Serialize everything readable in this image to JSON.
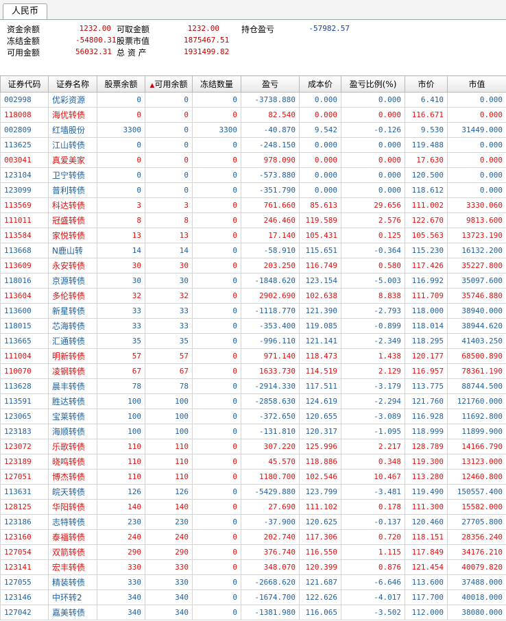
{
  "tab": "人民币",
  "summary": [
    [
      {
        "label": "资金余额",
        "value": "1232.00"
      },
      {
        "label": "可取金额",
        "value": "1232.00"
      },
      {
        "label": "持仓盈亏",
        "value": "-57982.57"
      }
    ],
    [
      {
        "label": "冻结金额",
        "value": "-54800.31"
      },
      {
        "label": "股票市值",
        "value": "1875467.51"
      }
    ],
    [
      {
        "label": "可用金额",
        "value": "56032.31"
      },
      {
        "label": "总 资 产",
        "value": "1931499.82"
      }
    ]
  ],
  "table": {
    "headers": [
      "证券代码",
      "证券名称",
      "股票余额",
      "可用余额",
      "冻结数量",
      "盈亏",
      "成本价",
      "盈亏比例(%)",
      "市价",
      "市值"
    ],
    "rows": [
      [
        "002998",
        "优彩资源",
        "0",
        "0",
        "0",
        "-3738.880",
        "0.000",
        "0.000",
        "6.410",
        "0.000"
      ],
      [
        "118008",
        "海优转债",
        "0",
        "0",
        "0",
        "82.540",
        "0.000",
        "0.000",
        "116.671",
        "0.000"
      ],
      [
        "002809",
        "红墙股份",
        "3300",
        "0",
        "3300",
        "-40.870",
        "9.542",
        "-0.126",
        "9.530",
        "31449.000"
      ],
      [
        "113625",
        "江山转债",
        "0",
        "0",
        "0",
        "-248.150",
        "0.000",
        "0.000",
        "119.488",
        "0.000"
      ],
      [
        "003041",
        "真爱美家",
        "0",
        "0",
        "0",
        "978.090",
        "0.000",
        "0.000",
        "17.630",
        "0.000"
      ],
      [
        "123104",
        "卫宁转债",
        "0",
        "0",
        "0",
        "-573.880",
        "0.000",
        "0.000",
        "120.500",
        "0.000"
      ],
      [
        "123099",
        "普利转债",
        "0",
        "0",
        "0",
        "-351.790",
        "0.000",
        "0.000",
        "118.612",
        "0.000"
      ],
      [
        "113569",
        "科达转债",
        "3",
        "3",
        "0",
        "761.660",
        "85.613",
        "29.656",
        "111.002",
        "3330.060"
      ],
      [
        "111011",
        "冠盛转债",
        "8",
        "8",
        "0",
        "246.460",
        "119.589",
        "2.576",
        "122.670",
        "9813.600"
      ],
      [
        "113584",
        "家悦转债",
        "13",
        "13",
        "0",
        "17.140",
        "105.431",
        "0.125",
        "105.563",
        "13723.190"
      ],
      [
        "113668",
        "N鹿山转",
        "14",
        "14",
        "0",
        "-58.910",
        "115.651",
        "-0.364",
        "115.230",
        "16132.200"
      ],
      [
        "113609",
        "永安转债",
        "30",
        "30",
        "0",
        "203.250",
        "116.749",
        "0.580",
        "117.426",
        "35227.800"
      ],
      [
        "118016",
        "京源转债",
        "30",
        "30",
        "0",
        "-1848.620",
        "123.154",
        "-5.003",
        "116.992",
        "35097.600"
      ],
      [
        "113604",
        "多伦转债",
        "32",
        "32",
        "0",
        "2902.690",
        "102.638",
        "8.838",
        "111.709",
        "35746.880"
      ],
      [
        "113600",
        "新星转债",
        "33",
        "33",
        "0",
        "-1118.770",
        "121.390",
        "-2.793",
        "118.000",
        "38940.000"
      ],
      [
        "118015",
        "芯海转债",
        "33",
        "33",
        "0",
        "-353.400",
        "119.085",
        "-0.899",
        "118.014",
        "38944.620"
      ],
      [
        "113665",
        "汇通转债",
        "35",
        "35",
        "0",
        "-996.110",
        "121.141",
        "-2.349",
        "118.295",
        "41403.250"
      ],
      [
        "111004",
        "明新转债",
        "57",
        "57",
        "0",
        "971.140",
        "118.473",
        "1.438",
        "120.177",
        "68500.890"
      ],
      [
        "110070",
        "凌钢转债",
        "67",
        "67",
        "0",
        "1633.730",
        "114.519",
        "2.129",
        "116.957",
        "78361.190"
      ],
      [
        "113628",
        "晨丰转债",
        "78",
        "78",
        "0",
        "-2914.330",
        "117.511",
        "-3.179",
        "113.775",
        "88744.500"
      ],
      [
        "113591",
        "胜达转债",
        "100",
        "100",
        "0",
        "-2858.630",
        "124.619",
        "-2.294",
        "121.760",
        "121760.000"
      ],
      [
        "123065",
        "宝莱转债",
        "100",
        "100",
        "0",
        "-372.650",
        "120.655",
        "-3.089",
        "116.928",
        "11692.800"
      ],
      [
        "123183",
        "海顺转债",
        "100",
        "100",
        "0",
        "-131.810",
        "120.317",
        "-1.095",
        "118.999",
        "11899.900"
      ],
      [
        "123072",
        "乐歌转债",
        "110",
        "110",
        "0",
        "307.220",
        "125.996",
        "2.217",
        "128.789",
        "14166.790"
      ],
      [
        "123189",
        "晓鸣转债",
        "110",
        "110",
        "0",
        "45.570",
        "118.886",
        "0.348",
        "119.300",
        "13123.000"
      ],
      [
        "127051",
        "博杰转债",
        "110",
        "110",
        "0",
        "1180.700",
        "102.546",
        "10.467",
        "113.280",
        "12460.800"
      ],
      [
        "113631",
        "皖天转债",
        "126",
        "126",
        "0",
        "-5429.880",
        "123.799",
        "-3.481",
        "119.490",
        "150557.400"
      ],
      [
        "128125",
        "华阳转债",
        "140",
        "140",
        "0",
        "27.690",
        "111.102",
        "0.178",
        "111.300",
        "15582.000"
      ],
      [
        "123186",
        "志特转债",
        "230",
        "230",
        "0",
        "-37.900",
        "120.625",
        "-0.137",
        "120.460",
        "27705.800"
      ],
      [
        "123160",
        "泰福转债",
        "240",
        "240",
        "0",
        "202.740",
        "117.306",
        "0.720",
        "118.151",
        "28356.240"
      ],
      [
        "127054",
        "双箭转债",
        "290",
        "290",
        "0",
        "376.740",
        "116.550",
        "1.115",
        "117.849",
        "34176.210"
      ],
      [
        "123141",
        "宏丰转债",
        "330",
        "330",
        "0",
        "348.070",
        "120.399",
        "0.876",
        "121.454",
        "40079.820"
      ],
      [
        "127055",
        "精装转债",
        "330",
        "330",
        "0",
        "-2668.620",
        "121.687",
        "-6.646",
        "113.600",
        "37488.000"
      ],
      [
        "123146",
        "中环转2",
        "340",
        "340",
        "0",
        "-1674.700",
        "122.626",
        "-4.017",
        "117.700",
        "40018.000"
      ],
      [
        "127042",
        "嘉美转债",
        "340",
        "340",
        "0",
        "-1381.980",
        "116.065",
        "-3.502",
        "112.000",
        "38080.000"
      ]
    ]
  }
}
